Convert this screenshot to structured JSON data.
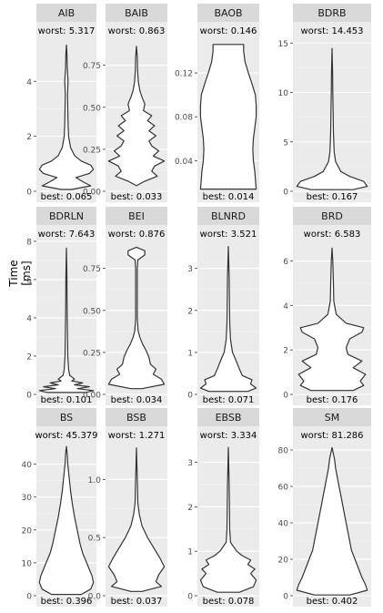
{
  "figure": {
    "ylabel": "Time [ms]"
  },
  "chart_data": [
    {
      "type": "violin",
      "strip": "AIB",
      "ylim": [
        0,
        5.5
      ],
      "yticks": [
        0,
        2,
        4
      ],
      "ytick_labels": [
        "0",
        "2",
        "4"
      ],
      "worst_label": "worst: 5.317",
      "best_label": "best: 0.065",
      "worst": 5.317,
      "best": 0.065,
      "density": [
        [
          0.065,
          0.2
        ],
        [
          0.2,
          0.9
        ],
        [
          0.35,
          0.6
        ],
        [
          0.5,
          0.35
        ],
        [
          0.65,
          0.85
        ],
        [
          0.8,
          1.0
        ],
        [
          0.95,
          0.9
        ],
        [
          1.1,
          0.55
        ],
        [
          1.3,
          0.3
        ],
        [
          1.6,
          0.15
        ],
        [
          2.0,
          0.08
        ],
        [
          2.5,
          0.06
        ],
        [
          3.0,
          0.05
        ],
        [
          3.5,
          0.04
        ],
        [
          4.0,
          0.06
        ],
        [
          4.5,
          0.03
        ],
        [
          5.0,
          0.02
        ],
        [
          5.317,
          0.0
        ]
      ]
    },
    {
      "type": "violin",
      "strip": "BAIB",
      "ylim": [
        0,
        0.9
      ],
      "yticks": [
        0,
        0.25,
        0.5,
        0.75
      ],
      "ytick_labels": [
        "0.00",
        "0.25",
        "0.50",
        "0.75"
      ],
      "worst_label": "worst: 0.863",
      "best_label": "best: 0.033",
      "worst": 0.863,
      "best": 0.033,
      "density": [
        [
          0.033,
          0.0
        ],
        [
          0.06,
          0.3
        ],
        [
          0.09,
          0.75
        ],
        [
          0.12,
          0.55
        ],
        [
          0.15,
          0.65
        ],
        [
          0.18,
          1.0
        ],
        [
          0.21,
          0.6
        ],
        [
          0.24,
          0.8
        ],
        [
          0.27,
          0.55
        ],
        [
          0.3,
          0.45
        ],
        [
          0.33,
          0.7
        ],
        [
          0.36,
          0.45
        ],
        [
          0.39,
          0.65
        ],
        [
          0.42,
          0.4
        ],
        [
          0.45,
          0.55
        ],
        [
          0.48,
          0.25
        ],
        [
          0.52,
          0.3
        ],
        [
          0.56,
          0.2
        ],
        [
          0.6,
          0.12
        ],
        [
          0.65,
          0.07
        ],
        [
          0.72,
          0.04
        ],
        [
          0.8,
          0.03
        ],
        [
          0.863,
          0.0
        ]
      ]
    },
    {
      "type": "violin",
      "strip": "BAOB",
      "ylim": [
        0.012,
        0.15
      ],
      "yticks": [
        0.04,
        0.08,
        0.12
      ],
      "ytick_labels": [
        "0.04",
        "0.08",
        "0.12"
      ],
      "worst_label": "worst: 0.146",
      "best_label": "best: 0.014",
      "worst": 0.146,
      "best": 0.014,
      "density": [
        [
          0.014,
          1.0
        ],
        [
          0.02,
          0.98
        ],
        [
          0.03,
          0.95
        ],
        [
          0.04,
          0.9
        ],
        [
          0.05,
          0.88
        ],
        [
          0.06,
          0.9
        ],
        [
          0.07,
          0.95
        ],
        [
          0.08,
          1.0
        ],
        [
          0.09,
          1.0
        ],
        [
          0.1,
          0.97
        ],
        [
          0.11,
          0.85
        ],
        [
          0.12,
          0.72
        ],
        [
          0.13,
          0.6
        ],
        [
          0.14,
          0.55
        ],
        [
          0.146,
          0.55
        ]
      ]
    },
    {
      "type": "violin",
      "strip": "BDRB",
      "ylim": [
        0,
        15.3
      ],
      "yticks": [
        0,
        5,
        10,
        15
      ],
      "ytick_labels": [
        "0",
        "5",
        "10",
        "15"
      ],
      "worst_label": "worst: 14.453",
      "best_label": "best: 0.167",
      "worst": 14.453,
      "best": 0.167,
      "density": [
        [
          0.167,
          0.6
        ],
        [
          0.5,
          1.0
        ],
        [
          1.0,
          0.9
        ],
        [
          1.5,
          0.5
        ],
        [
          2.0,
          0.25
        ],
        [
          3.0,
          0.1
        ],
        [
          4.0,
          0.06
        ],
        [
          6.0,
          0.04
        ],
        [
          8.0,
          0.03
        ],
        [
          10.0,
          0.02
        ],
        [
          12.0,
          0.015
        ],
        [
          14.453,
          0.0
        ]
      ]
    },
    {
      "type": "violin",
      "strip": "BDRLN",
      "ylim": [
        0,
        7.9
      ],
      "yticks": [
        0,
        2,
        4,
        6,
        8
      ],
      "ytick_labels": [
        "0",
        "2",
        "4",
        "6",
        "8"
      ],
      "worst_label": "worst: 7.643",
      "best_label": "best: 0.101",
      "worst": 7.643,
      "best": 0.101,
      "density": [
        [
          0.101,
          0.7
        ],
        [
          0.2,
          1.0
        ],
        [
          0.3,
          0.4
        ],
        [
          0.4,
          0.85
        ],
        [
          0.5,
          0.3
        ],
        [
          0.6,
          0.6
        ],
        [
          0.7,
          0.2
        ],
        [
          0.8,
          0.3
        ],
        [
          1.0,
          0.12
        ],
        [
          1.3,
          0.08
        ],
        [
          2.0,
          0.05
        ],
        [
          3.0,
          0.04
        ],
        [
          4.0,
          0.03
        ],
        [
          5.0,
          0.025
        ],
        [
          6.0,
          0.02
        ],
        [
          7.643,
          0.0
        ]
      ]
    },
    {
      "type": "violin",
      "strip": "BEI",
      "ylim": [
        0,
        0.9
      ],
      "yticks": [
        0,
        0.25,
        0.5,
        0.75
      ],
      "ytick_labels": [
        "0.00",
        "0.25",
        "0.50",
        "0.75"
      ],
      "worst_label": "worst: 0.876",
      "best_label": "best: 0.034",
      "worst": 0.876,
      "best": 0.034,
      "density": [
        [
          0.034,
          0.2
        ],
        [
          0.06,
          1.0
        ],
        [
          0.09,
          0.9
        ],
        [
          0.12,
          0.6
        ],
        [
          0.15,
          0.7
        ],
        [
          0.18,
          0.5
        ],
        [
          0.22,
          0.45
        ],
        [
          0.26,
          0.35
        ],
        [
          0.3,
          0.22
        ],
        [
          0.34,
          0.12
        ],
        [
          0.38,
          0.06
        ],
        [
          0.45,
          0.03
        ],
        [
          0.55,
          0.03
        ],
        [
          0.65,
          0.03
        ],
        [
          0.75,
          0.03
        ],
        [
          0.8,
          0.05
        ],
        [
          0.83,
          0.3
        ],
        [
          0.855,
          0.3
        ],
        [
          0.876,
          0.0
        ]
      ]
    },
    {
      "type": "violin",
      "strip": "BLNRD",
      "ylim": [
        0,
        3.6
      ],
      "yticks": [
        0,
        1,
        2,
        3
      ],
      "ytick_labels": [
        "0",
        "1",
        "2",
        "3"
      ],
      "worst_label": "worst: 3.521",
      "best_label": "best: 0.071",
      "worst": 3.521,
      "best": 0.071,
      "density": [
        [
          0.071,
          0.7
        ],
        [
          0.15,
          1.0
        ],
        [
          0.25,
          0.8
        ],
        [
          0.35,
          0.85
        ],
        [
          0.45,
          0.5
        ],
        [
          0.6,
          0.4
        ],
        [
          0.8,
          0.28
        ],
        [
          1.0,
          0.15
        ],
        [
          1.3,
          0.08
        ],
        [
          1.7,
          0.05
        ],
        [
          2.2,
          0.04
        ],
        [
          2.8,
          0.03
        ],
        [
          3.521,
          0.0
        ]
      ]
    },
    {
      "type": "violin",
      "strip": "BRD",
      "ylim": [
        0,
        6.8
      ],
      "yticks": [
        0,
        2,
        4,
        6
      ],
      "ytick_labels": [
        "0",
        "2",
        "4",
        "6"
      ],
      "worst_label": "worst: 6.583",
      "best_label": "best: 0.176",
      "worst": 6.583,
      "best": 0.176,
      "density": [
        [
          0.176,
          0.6
        ],
        [
          0.4,
          0.9
        ],
        [
          0.6,
          0.8
        ],
        [
          0.9,
          0.95
        ],
        [
          1.2,
          0.6
        ],
        [
          1.5,
          0.85
        ],
        [
          1.8,
          0.45
        ],
        [
          2.1,
          0.4
        ],
        [
          2.5,
          0.5
        ],
        [
          2.8,
          0.85
        ],
        [
          3.0,
          0.9
        ],
        [
          3.2,
          0.4
        ],
        [
          3.6,
          0.12
        ],
        [
          4.2,
          0.05
        ],
        [
          5.0,
          0.04
        ],
        [
          6.0,
          0.02
        ],
        [
          6.583,
          0.0
        ]
      ]
    },
    {
      "type": "violin",
      "strip": "BS",
      "ylim": [
        0,
        46
      ],
      "yticks": [
        0,
        10,
        20,
        30,
        40
      ],
      "ytick_labels": [
        "0",
        "10",
        "20",
        "30",
        "40"
      ],
      "worst_label": "worst: 45.379",
      "best_label": "best: 0.396",
      "worst": 45.379,
      "best": 0.396,
      "density": [
        [
          0.396,
          0.55
        ],
        [
          2,
          0.9
        ],
        [
          4,
          1.0
        ],
        [
          6,
          0.95
        ],
        [
          8,
          0.85
        ],
        [
          10,
          0.75
        ],
        [
          13,
          0.6
        ],
        [
          16,
          0.5
        ],
        [
          20,
          0.4
        ],
        [
          24,
          0.3
        ],
        [
          28,
          0.22
        ],
        [
          32,
          0.15
        ],
        [
          36,
          0.1
        ],
        [
          40,
          0.05
        ],
        [
          43,
          0.03
        ],
        [
          45.379,
          0.0
        ]
      ]
    },
    {
      "type": "violin",
      "strip": "BSB",
      "ylim": [
        0,
        1.3
      ],
      "yticks": [
        0,
        0.5,
        1.0
      ],
      "ytick_labels": [
        "0.0",
        "0.5",
        "1.0"
      ],
      "worst_label": "worst: 1.271",
      "best_label": "best: 0.037",
      "worst": 1.271,
      "best": 0.037,
      "density": [
        [
          0.037,
          0.2
        ],
        [
          0.08,
          0.9
        ],
        [
          0.12,
          0.7
        ],
        [
          0.18,
          0.8
        ],
        [
          0.25,
          1.0
        ],
        [
          0.32,
          0.85
        ],
        [
          0.4,
          0.65
        ],
        [
          0.5,
          0.4
        ],
        [
          0.6,
          0.2
        ],
        [
          0.7,
          0.1
        ],
        [
          0.8,
          0.05
        ],
        [
          1.0,
          0.03
        ],
        [
          1.271,
          0.0
        ]
      ]
    },
    {
      "type": "violin",
      "strip": "EBSB",
      "ylim": [
        0,
        3.4
      ],
      "yticks": [
        0,
        1,
        2,
        3
      ],
      "ytick_labels": [
        "0",
        "1",
        "2",
        "3"
      ],
      "worst_label": "worst: 3.334",
      "best_label": "best: 0.078",
      "worst": 3.334,
      "best": 0.078,
      "density": [
        [
          0.078,
          0.4
        ],
        [
          0.2,
          0.9
        ],
        [
          0.35,
          1.0
        ],
        [
          0.5,
          0.8
        ],
        [
          0.6,
          0.95
        ],
        [
          0.7,
          0.7
        ],
        [
          0.8,
          0.8
        ],
        [
          0.9,
          0.5
        ],
        [
          1.0,
          0.3
        ],
        [
          1.2,
          0.08
        ],
        [
          1.5,
          0.05
        ],
        [
          2.0,
          0.04
        ],
        [
          2.5,
          0.03
        ],
        [
          3.334,
          0.0
        ]
      ]
    },
    {
      "type": "violin",
      "strip": "SM",
      "ylim": [
        0,
        83
      ],
      "yticks": [
        0,
        20,
        40,
        60,
        80
      ],
      "ytick_labels": [
        "0",
        "20",
        "40",
        "60",
        "80"
      ],
      "worst_label": "worst: 81.286",
      "best_label": "best: 0.402",
      "worst": 81.286,
      "best": 0.402,
      "density": [
        [
          0.402,
          0.5
        ],
        [
          3,
          1.0
        ],
        [
          6,
          0.95
        ],
        [
          10,
          0.85
        ],
        [
          15,
          0.75
        ],
        [
          20,
          0.65
        ],
        [
          25,
          0.55
        ],
        [
          30,
          0.5
        ],
        [
          35,
          0.45
        ],
        [
          40,
          0.4
        ],
        [
          45,
          0.35
        ],
        [
          50,
          0.3
        ],
        [
          55,
          0.25
        ],
        [
          60,
          0.2
        ],
        [
          65,
          0.15
        ],
        [
          70,
          0.1
        ],
        [
          75,
          0.07
        ],
        [
          81.286,
          0.0
        ]
      ]
    }
  ]
}
